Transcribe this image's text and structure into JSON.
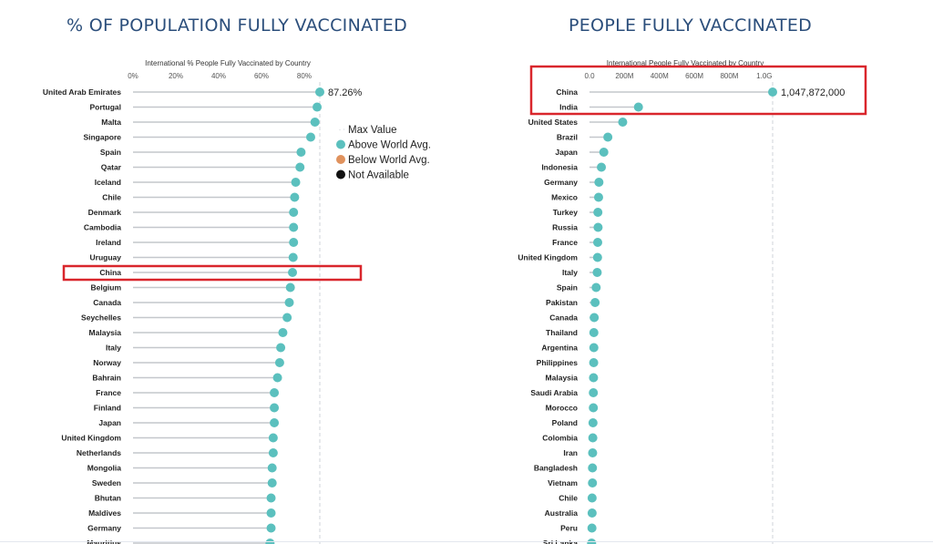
{
  "colors": {
    "title": "#2b4e7b",
    "above": "#5bc0be",
    "below": "#e0925d",
    "not_available": "#111111",
    "stem": "#c4c7cc",
    "highlight": "#d9262c",
    "max_line": "#cfd3d8"
  },
  "legend": {
    "items": [
      {
        "label": "Max Value",
        "marker": "dashed-line"
      },
      {
        "label": "Above World Avg.",
        "color": "#5bc0be"
      },
      {
        "label": "Below World Avg.",
        "color": "#e0925d"
      },
      {
        "label": "Not Available",
        "color": "#111111"
      }
    ]
  },
  "chart_data": [
    {
      "type": "lollipop",
      "title": "% OF POPULATION FULLY VACCINATED",
      "subtitle": "International % People Fully Vaccinated by Country",
      "xlim": [
        0,
        87.26
      ],
      "x_ticks": [
        0,
        20,
        40,
        60,
        80
      ],
      "x_tick_labels": [
        "0%",
        "20%",
        "40%",
        "60%",
        "80%"
      ],
      "max_value_label": "87.26%",
      "highlighted": "China",
      "categories": [
        "United Arab Emirates",
        "Portugal",
        "Malta",
        "Singapore",
        "Spain",
        "Qatar",
        "Iceland",
        "Chile",
        "Denmark",
        "Cambodia",
        "Ireland",
        "Uruguay",
        "China",
        "Belgium",
        "Canada",
        "Seychelles",
        "Malaysia",
        "Italy",
        "Norway",
        "Bahrain",
        "France",
        "Finland",
        "Japan",
        "United Kingdom",
        "Netherlands",
        "Mongolia",
        "Sweden",
        "Bhutan",
        "Maldives",
        "Germany",
        "Mauritius"
      ],
      "values": [
        87.26,
        86,
        85,
        83,
        78.5,
        78,
        76,
        75.5,
        75,
        75,
        75,
        74.8,
        74.5,
        73.5,
        73,
        72,
        70,
        69,
        68.5,
        67.5,
        66,
        66,
        66,
        65.5,
        65.5,
        65,
        65,
        64.5,
        64.5,
        64.5,
        64
      ],
      "status": "Above World Avg."
    },
    {
      "type": "lollipop",
      "title": "PEOPLE FULLY VACCINATED",
      "subtitle": "International People Fully Vaccinated by Country",
      "xlim": [
        0,
        1047872000
      ],
      "x_ticks": [
        0,
        200000000,
        400000000,
        600000000,
        800000000,
        1000000000
      ],
      "x_tick_labels": [
        "0.0",
        "200M",
        "400M",
        "600M",
        "800M",
        "1.0G"
      ],
      "max_value_label": "1,047,872,000",
      "highlighted": [
        "China",
        "India"
      ],
      "categories": [
        "China",
        "India",
        "United States",
        "Brazil",
        "Japan",
        "Indonesia",
        "Germany",
        "Mexico",
        "Turkey",
        "Russia",
        "France",
        "United Kingdom",
        "Italy",
        "Spain",
        "Pakistan",
        "Canada",
        "Thailand",
        "Argentina",
        "Philippines",
        "Malaysia",
        "Saudi Arabia",
        "Morocco",
        "Poland",
        "Colombia",
        "Iran",
        "Bangladesh",
        "Vietnam",
        "Chile",
        "Australia",
        "Peru",
        "Sri Lanka"
      ],
      "values": [
        1047872000,
        280000000,
        190000000,
        105000000,
        82000000,
        68000000,
        54000000,
        52000000,
        48000000,
        49000000,
        47000000,
        46000000,
        44000000,
        38000000,
        32000000,
        27000000,
        25000000,
        25000000,
        24000000,
        23000000,
        22000000,
        22000000,
        20000000,
        19000000,
        18000000,
        17000000,
        17000000,
        15000000,
        15000000,
        14000000,
        12000000
      ],
      "status": "Above World Avg."
    }
  ]
}
